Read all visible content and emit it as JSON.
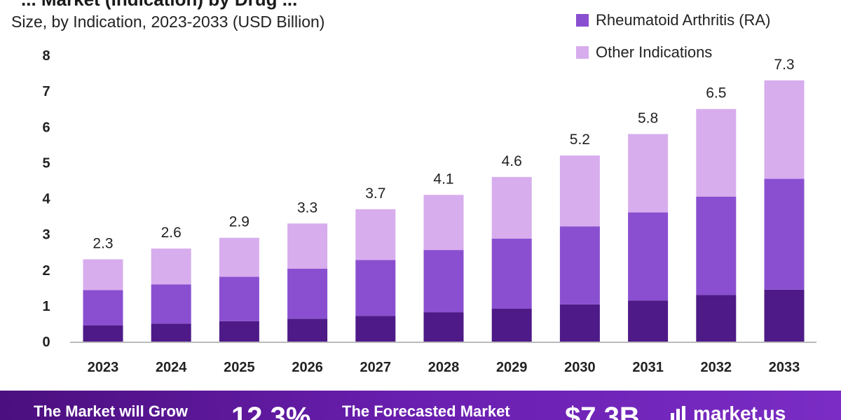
{
  "header": {
    "title": "... Market (Indication) by Drug ...",
    "subtitle": "Size, by Indication, 2023-2033 (USD Billion)"
  },
  "colors": {
    "dark": "#4e1a87",
    "mid": "#8a4fd0",
    "light": "#d7adee",
    "axis": "#bbbbbb",
    "text": "#222222",
    "banner": "#5e1a9e"
  },
  "chart_data": {
    "type": "bar",
    "stacked": true,
    "categories": [
      "2023",
      "2024",
      "2025",
      "2026",
      "2027",
      "2028",
      "2029",
      "2030",
      "2031",
      "2032",
      "2033"
    ],
    "series": [
      {
        "name": "(unlabeled segment)",
        "values": [
          0.45,
          0.5,
          0.57,
          0.64,
          0.72,
          0.82,
          0.92,
          1.04,
          1.15,
          1.3,
          1.45
        ]
      },
      {
        "name": "Rheumatoid Arthritis (RA)",
        "values": [
          0.99,
          1.1,
          1.24,
          1.4,
          1.56,
          1.74,
          1.96,
          2.18,
          2.46,
          2.75,
          3.1
        ]
      },
      {
        "name": "Other Indications",
        "values": [
          0.86,
          1.0,
          1.09,
          1.26,
          1.42,
          1.54,
          1.72,
          1.98,
          2.19,
          2.45,
          2.75
        ]
      }
    ],
    "totals": [
      "2.3",
      "2.6",
      "2.9",
      "3.3",
      "3.7",
      "4.1",
      "4.6",
      "5.2",
      "5.8",
      "6.5",
      "7.3"
    ],
    "yticks": [
      "0",
      "1",
      "2",
      "3",
      "4",
      "5",
      "6",
      "7",
      "8"
    ],
    "ylim": [
      0,
      8
    ],
    "xlabel": "",
    "ylabel": "",
    "legend": [
      {
        "label": "Rheumatoid Arthritis (RA)",
        "color": "#8a4fd0"
      },
      {
        "label": "Other Indications",
        "color": "#d7adee"
      }
    ],
    "legend_position": "top-right"
  },
  "banner": {
    "grow_text": "The Market will Grow",
    "cagr_value": "12.3%",
    "forecast_text": "The Forecasted Market",
    "forecast_value": "$7.3B",
    "logo_text": "market.us"
  }
}
